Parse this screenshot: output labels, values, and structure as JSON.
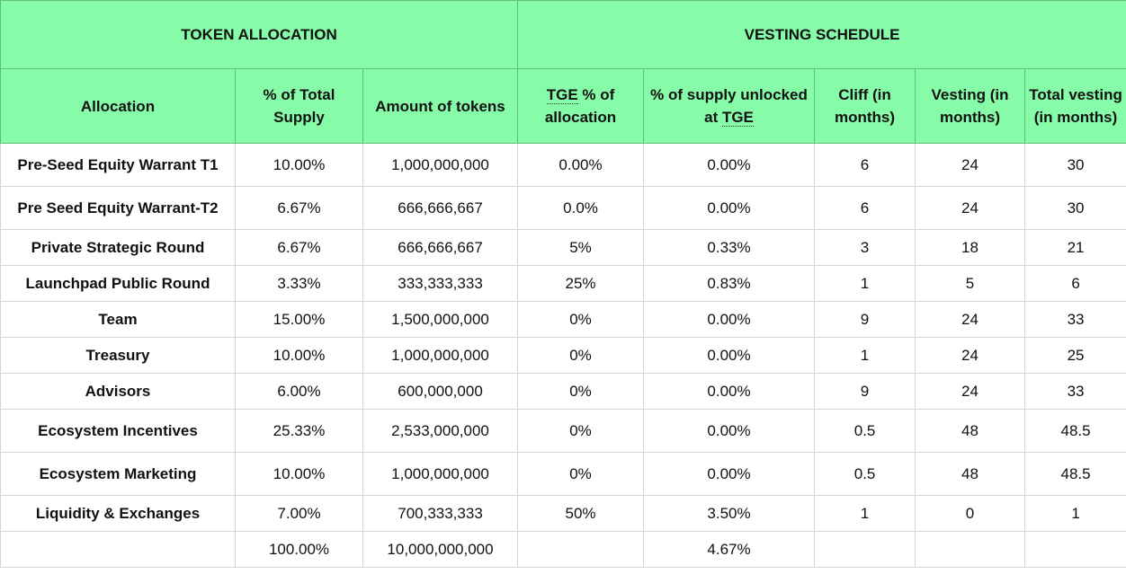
{
  "groups": {
    "token_allocation": "TOKEN ALLOCATION",
    "vesting_schedule": "VESTING SCHEDULE"
  },
  "columns": {
    "allocation": "Allocation",
    "pct_total_supply": "% of Total Supply",
    "amount": "Amount of tokens",
    "tge_pct_a": "TGE",
    "tge_pct_b": " % of allocation",
    "supply_unlocked_a": "% of supply unlocked at ",
    "supply_unlocked_b": "TGE",
    "cliff": "Cliff (in months)",
    "vesting": "Vesting (in months)",
    "total_vesting": "Total vesting (in months)"
  },
  "rows": [
    {
      "allocation": "Pre-Seed Equity Warrant T1",
      "pct": "10.00%",
      "amount": "1,000,000,000",
      "tge": "0.00%",
      "unlocked": "0.00%",
      "cliff": "6",
      "vesting": "24",
      "total": "30"
    },
    {
      "allocation": "Pre Seed Equity Warrant-T2",
      "pct": "6.67%",
      "amount": "666,666,667",
      "tge": "0.0%",
      "unlocked": "0.00%",
      "cliff": "6",
      "vesting": "24",
      "total": "30"
    },
    {
      "allocation": "Private Strategic Round",
      "pct": "6.67%",
      "amount": "666,666,667",
      "tge": "5%",
      "unlocked": "0.33%",
      "cliff": "3",
      "vesting": "18",
      "total": "21"
    },
    {
      "allocation": "Launchpad Public Round",
      "pct": "3.33%",
      "amount": "333,333,333",
      "tge": "25%",
      "unlocked": "0.83%",
      "cliff": "1",
      "vesting": "5",
      "total": "6"
    },
    {
      "allocation": "Team",
      "pct": "15.00%",
      "amount": "1,500,000,000",
      "tge": "0%",
      "unlocked": "0.00%",
      "cliff": "9",
      "vesting": "24",
      "total": "33"
    },
    {
      "allocation": "Treasury",
      "pct": "10.00%",
      "amount": "1,000,000,000",
      "tge": "0%",
      "unlocked": "0.00%",
      "cliff": "1",
      "vesting": "24",
      "total": "25"
    },
    {
      "allocation": "Advisors",
      "pct": "6.00%",
      "amount": "600,000,000",
      "tge": "0%",
      "unlocked": "0.00%",
      "cliff": "9",
      "vesting": "24",
      "total": "33"
    },
    {
      "allocation": "Ecosystem Incentives",
      "pct": "25.33%",
      "amount": "2,533,000,000",
      "tge": "0%",
      "unlocked": "0.00%",
      "cliff": "0.5",
      "vesting": "48",
      "total": "48.5"
    },
    {
      "allocation": "Ecosystem Marketing",
      "pct": "10.00%",
      "amount": "1,000,000,000",
      "tge": "0%",
      "unlocked": "0.00%",
      "cliff": "0.5",
      "vesting": "48",
      "total": "48.5"
    },
    {
      "allocation": "Liquidity & Exchanges",
      "pct": "7.00%",
      "amount": "700,333,333",
      "tge": "50%",
      "unlocked": "3.50%",
      "cliff": "1",
      "vesting": "0",
      "total": "1"
    }
  ],
  "totals": {
    "allocation": "",
    "pct": "100.00%",
    "amount": "10,000,000,000",
    "tge": "",
    "unlocked": "4.67%",
    "cliff": "",
    "vesting": "",
    "total": ""
  },
  "colors": {
    "header_bg": "#86fca8"
  }
}
